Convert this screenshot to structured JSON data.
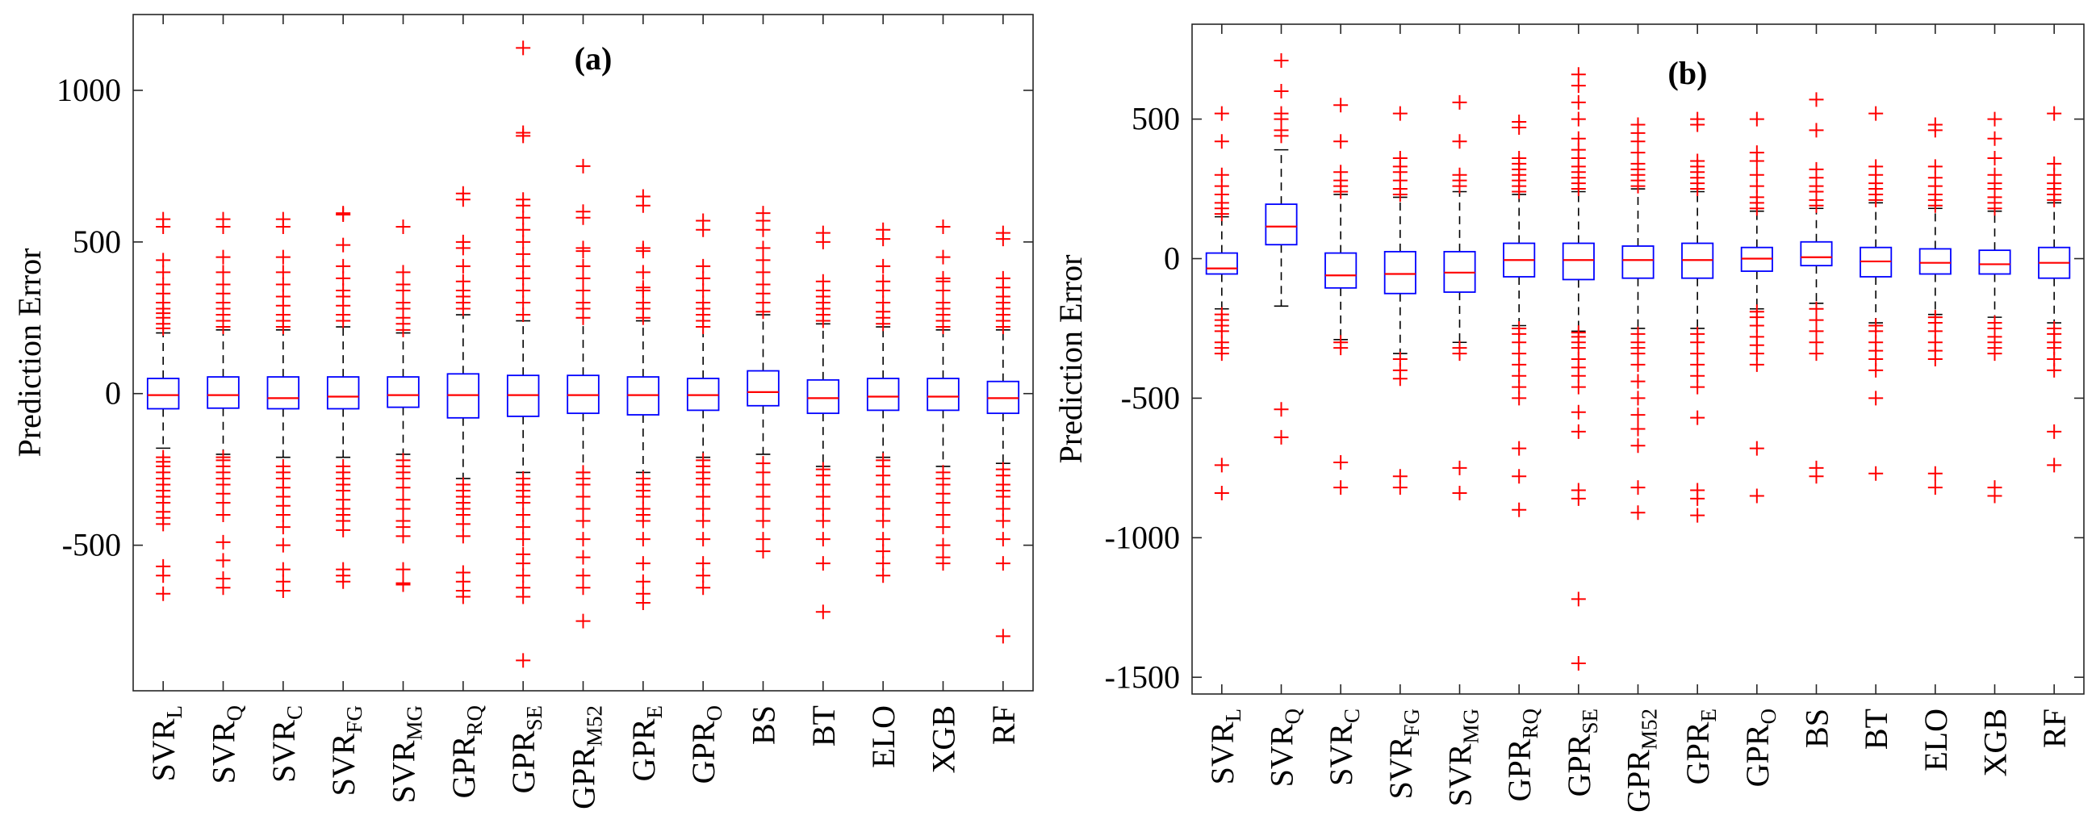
{
  "chart_data": [
    {
      "type": "boxplot",
      "panel": "a",
      "title": "(a)",
      "xlabel": "",
      "ylabel": "Prediction Error",
      "ylim": [
        -980,
        1250
      ],
      "yticks": [
        -500,
        0,
        500,
        1000
      ],
      "ytick_labels": [
        "-500",
        "0",
        "500",
        "1000"
      ],
      "categories": [
        {
          "base": "SVR",
          "sub": "L"
        },
        {
          "base": "SVR",
          "sub": "Q"
        },
        {
          "base": "SVR",
          "sub": "C"
        },
        {
          "base": "SVR",
          "sub": "FG"
        },
        {
          "base": "SVR",
          "sub": "MG"
        },
        {
          "base": "GPR",
          "sub": "RQ"
        },
        {
          "base": "GPR",
          "sub": "SE"
        },
        {
          "base": "GPR",
          "sub": "M52"
        },
        {
          "base": "GPR",
          "sub": "E"
        },
        {
          "base": "GPR",
          "sub": "O"
        },
        {
          "base": "BS",
          "sub": ""
        },
        {
          "base": "BT",
          "sub": ""
        },
        {
          "base": "ELO",
          "sub": ""
        },
        {
          "base": "XGB",
          "sub": ""
        },
        {
          "base": "RF",
          "sub": ""
        }
      ],
      "boxes": [
        {
          "q1": -50,
          "median": -5,
          "q3": 50,
          "wlow": -180,
          "whigh": 200,
          "outliers": [
            -660,
            -600,
            -570,
            -430,
            -410,
            -390,
            -360,
            -340,
            -320,
            -300,
            -280,
            -260,
            -240,
            -225,
            -210,
            215,
            230,
            250,
            265,
            280,
            300,
            330,
            360,
            400,
            440,
            550,
            575
          ]
        },
        {
          "q1": -48,
          "median": -5,
          "q3": 55,
          "wlow": -200,
          "whigh": 210,
          "outliers": [
            -640,
            -610,
            -550,
            -490,
            -400,
            -360,
            -330,
            -300,
            -280,
            -260,
            -240,
            -220,
            -210,
            220,
            240,
            260,
            280,
            300,
            330,
            360,
            400,
            450,
            550,
            575
          ]
        },
        {
          "q1": -50,
          "median": -15,
          "q3": 55,
          "wlow": -210,
          "whigh": 210,
          "outliers": [
            -650,
            -620,
            -580,
            -500,
            -440,
            -400,
            -370,
            -340,
            -310,
            -280,
            -260,
            -240,
            220,
            240,
            260,
            290,
            320,
            360,
            400,
            450,
            550,
            575
          ]
        },
        {
          "q1": -50,
          "median": -10,
          "q3": 55,
          "wlow": -210,
          "whigh": 220,
          "outliers": [
            -620,
            -600,
            -580,
            -450,
            -420,
            -400,
            -380,
            -350,
            -320,
            -300,
            -280,
            -260,
            -240,
            240,
            260,
            290,
            320,
            340,
            380,
            420,
            490,
            590,
            595
          ]
        },
        {
          "q1": -45,
          "median": -5,
          "q3": 55,
          "wlow": -200,
          "whigh": 200,
          "outliers": [
            -630,
            -625,
            -580,
            -470,
            -440,
            -420,
            -380,
            -350,
            -310,
            -280,
            -260,
            -240,
            -220,
            210,
            230,
            250,
            280,
            300,
            340,
            360,
            400,
            550
          ]
        },
        {
          "q1": -80,
          "median": -5,
          "q3": 65,
          "wlow": -280,
          "whigh": 260,
          "outliers": [
            -670,
            -650,
            -620,
            -590,
            -470,
            -430,
            -400,
            -380,
            -360,
            -340,
            -320,
            -300,
            280,
            300,
            320,
            340,
            370,
            420,
            480,
            500,
            640,
            660
          ]
        },
        {
          "q1": -75,
          "median": -5,
          "q3": 60,
          "wlow": -260,
          "whigh": 240,
          "outliers": [
            -880,
            -670,
            -640,
            -600,
            -560,
            -530,
            -480,
            -440,
            -400,
            -360,
            -340,
            -320,
            -300,
            -280,
            260,
            300,
            340,
            380,
            420,
            460,
            500,
            540,
            580,
            620,
            640,
            850,
            860,
            1140
          ]
        },
        {
          "q1": -65,
          "median": -5,
          "q3": 60,
          "wlow": -260,
          "whigh": 250,
          "outliers": [
            -750,
            -640,
            -600,
            -540,
            -480,
            -420,
            -380,
            -340,
            -300,
            -280,
            -260,
            250,
            280,
            300,
            340,
            380,
            420,
            470,
            480,
            580,
            600,
            750
          ]
        },
        {
          "q1": -70,
          "median": -5,
          "q3": 55,
          "wlow": -260,
          "whigh": 240,
          "outliers": [
            -690,
            -660,
            -620,
            -560,
            -480,
            -420,
            -400,
            -380,
            -340,
            -320,
            -300,
            -280,
            250,
            280,
            300,
            340,
            350,
            400,
            470,
            480,
            620,
            650
          ]
        },
        {
          "q1": -55,
          "median": -5,
          "q3": 50,
          "wlow": -210,
          "whigh": 220,
          "outliers": [
            -640,
            -600,
            -560,
            -480,
            -420,
            -380,
            -340,
            -300,
            -280,
            -260,
            -240,
            -220,
            220,
            240,
            260,
            280,
            300,
            340,
            380,
            420,
            540,
            570
          ]
        },
        {
          "q1": -40,
          "median": 5,
          "q3": 75,
          "wlow": -200,
          "whigh": 260,
          "outliers": [
            -520,
            -480,
            -420,
            -380,
            -340,
            -300,
            -260,
            -230,
            270,
            300,
            330,
            360,
            400,
            440,
            480,
            540,
            570,
            595
          ]
        },
        {
          "q1": -65,
          "median": -15,
          "q3": 45,
          "wlow": -240,
          "whigh": 230,
          "outliers": [
            -720,
            -560,
            -480,
            -420,
            -380,
            -340,
            -300,
            -270,
            -250,
            240,
            260,
            280,
            300,
            320,
            340,
            370,
            500,
            530
          ]
        },
        {
          "q1": -55,
          "median": -10,
          "q3": 50,
          "wlow": -210,
          "whigh": 220,
          "outliers": [
            -600,
            -560,
            -520,
            -480,
            -420,
            -380,
            -340,
            -300,
            -270,
            -240,
            -220,
            230,
            250,
            270,
            300,
            340,
            370,
            420,
            510,
            540
          ]
        },
        {
          "q1": -55,
          "median": -10,
          "q3": 50,
          "wlow": -240,
          "whigh": 210,
          "outliers": [
            -560,
            -540,
            -500,
            -440,
            -400,
            -360,
            -330,
            -300,
            -280,
            -260,
            220,
            240,
            260,
            280,
            300,
            340,
            370,
            380,
            450,
            550
          ]
        },
        {
          "q1": -65,
          "median": -15,
          "q3": 40,
          "wlow": -230,
          "whigh": 210,
          "outliers": [
            -800,
            -560,
            -480,
            -420,
            -380,
            -340,
            -320,
            -300,
            -270,
            -250,
            220,
            240,
            260,
            280,
            300,
            320,
            350,
            380,
            510,
            530
          ]
        }
      ]
    },
    {
      "type": "boxplot",
      "panel": "b",
      "title": "(b)",
      "xlabel": "",
      "ylabel": "Prediction Error",
      "ylim": [
        -1560,
        840
      ],
      "yticks": [
        -1500,
        -1000,
        -500,
        0,
        500
      ],
      "ytick_labels": [
        "-1500",
        "-1000",
        "-500",
        "0",
        "500"
      ],
      "categories": [
        {
          "base": "SVR",
          "sub": "L"
        },
        {
          "base": "SVR",
          "sub": "Q"
        },
        {
          "base": "SVR",
          "sub": "C"
        },
        {
          "base": "SVR",
          "sub": "FG"
        },
        {
          "base": "SVR",
          "sub": "MG"
        },
        {
          "base": "GPR",
          "sub": "RQ"
        },
        {
          "base": "GPR",
          "sub": "SE"
        },
        {
          "base": "GPR",
          "sub": "M52"
        },
        {
          "base": "GPR",
          "sub": "E"
        },
        {
          "base": "GPR",
          "sub": "O"
        },
        {
          "base": "BS",
          "sub": ""
        },
        {
          "base": "BT",
          "sub": ""
        },
        {
          "base": "ELO",
          "sub": ""
        },
        {
          "base": "XGB",
          "sub": ""
        },
        {
          "base": "RF",
          "sub": ""
        }
      ],
      "boxes": [
        {
          "q1": -55,
          "median": -35,
          "q3": 20,
          "wlow": -180,
          "whigh": 150,
          "outliers": [
            -840,
            -740,
            -340,
            -320,
            -300,
            -260,
            -240,
            -220,
            -200,
            160,
            180,
            200,
            230,
            260,
            300,
            420,
            520
          ]
        },
        {
          "q1": 50,
          "median": 115,
          "q3": 195,
          "wlow": -170,
          "whigh": 390,
          "outliers": [
            -640,
            -540,
            440,
            460,
            500,
            520,
            600,
            710
          ]
        },
        {
          "q1": -105,
          "median": -60,
          "q3": 20,
          "wlow": -290,
          "whigh": 230,
          "outliers": [
            -820,
            -730,
            -320,
            -300,
            240,
            260,
            280,
            310,
            420,
            550
          ]
        },
        {
          "q1": -125,
          "median": -55,
          "q3": 25,
          "wlow": -340,
          "whigh": 220,
          "outliers": [
            -820,
            -780,
            -430,
            -400,
            -360,
            230,
            250,
            280,
            310,
            330,
            360,
            520
          ]
        },
        {
          "q1": -120,
          "median": -50,
          "q3": 25,
          "wlow": -300,
          "whigh": 240,
          "outliers": [
            -840,
            -750,
            -340,
            -320,
            260,
            280,
            300,
            420,
            560
          ]
        },
        {
          "q1": -65,
          "median": -5,
          "q3": 55,
          "wlow": -240,
          "whigh": 230,
          "outliers": [
            -900,
            -780,
            -680,
            -500,
            -460,
            -420,
            -380,
            -340,
            -300,
            -270,
            -250,
            240,
            260,
            280,
            300,
            320,
            340,
            360,
            470,
            490
          ]
        },
        {
          "q1": -75,
          "median": -5,
          "q3": 55,
          "wlow": -260,
          "whigh": 240,
          "outliers": [
            -1450,
            -1220,
            -860,
            -830,
            -620,
            -550,
            -460,
            -420,
            -390,
            -360,
            -320,
            -300,
            -280,
            -265,
            250,
            270,
            290,
            310,
            330,
            360,
            390,
            430,
            500,
            560,
            620,
            660
          ]
        },
        {
          "q1": -70,
          "median": -5,
          "q3": 45,
          "wlow": -250,
          "whigh": 250,
          "outliers": [
            -910,
            -820,
            -670,
            -610,
            -560,
            -500,
            -440,
            -380,
            -340,
            -320,
            -300,
            -270,
            260,
            280,
            300,
            320,
            340,
            380,
            420,
            450,
            480
          ]
        },
        {
          "q1": -70,
          "median": -5,
          "q3": 55,
          "wlow": -250,
          "whigh": 240,
          "outliers": [
            -920,
            -860,
            -830,
            -570,
            -460,
            -420,
            -380,
            -340,
            -300,
            -270,
            250,
            270,
            290,
            310,
            330,
            350,
            480,
            500
          ]
        },
        {
          "q1": -45,
          "median": 0,
          "q3": 40,
          "wlow": -180,
          "whigh": 170,
          "outliers": [
            -850,
            -680,
            -380,
            -340,
            -310,
            -280,
            -240,
            -210,
            -190,
            180,
            200,
            220,
            260,
            300,
            350,
            380,
            500
          ]
        },
        {
          "q1": -25,
          "median": 5,
          "q3": 60,
          "wlow": -160,
          "whigh": 180,
          "outliers": [
            -780,
            -750,
            -340,
            -300,
            -260,
            -220,
            -180,
            190,
            210,
            240,
            260,
            290,
            320,
            460,
            570
          ]
        },
        {
          "q1": -65,
          "median": -10,
          "q3": 40,
          "wlow": -230,
          "whigh": 200,
          "outliers": [
            -770,
            -500,
            -400,
            -360,
            -330,
            -300,
            -260,
            -240,
            210,
            230,
            250,
            270,
            300,
            330,
            520
          ]
        },
        {
          "q1": -55,
          "median": -15,
          "q3": 35,
          "wlow": -200,
          "whigh": 180,
          "outliers": [
            -820,
            -770,
            -360,
            -330,
            -300,
            -260,
            -230,
            -210,
            190,
            210,
            230,
            260,
            290,
            330,
            460,
            480
          ]
        },
        {
          "q1": -55,
          "median": -20,
          "q3": 30,
          "wlow": -210,
          "whigh": 170,
          "outliers": [
            -850,
            -820,
            -340,
            -320,
            -300,
            -280,
            -250,
            -230,
            180,
            200,
            220,
            250,
            270,
            300,
            360,
            430,
            500
          ]
        },
        {
          "q1": -70,
          "median": -15,
          "q3": 40,
          "wlow": -230,
          "whigh": 200,
          "outliers": [
            -740,
            -620,
            -400,
            -360,
            -320,
            -300,
            -270,
            -250,
            210,
            230,
            250,
            270,
            300,
            340,
            520
          ]
        }
      ]
    }
  ]
}
